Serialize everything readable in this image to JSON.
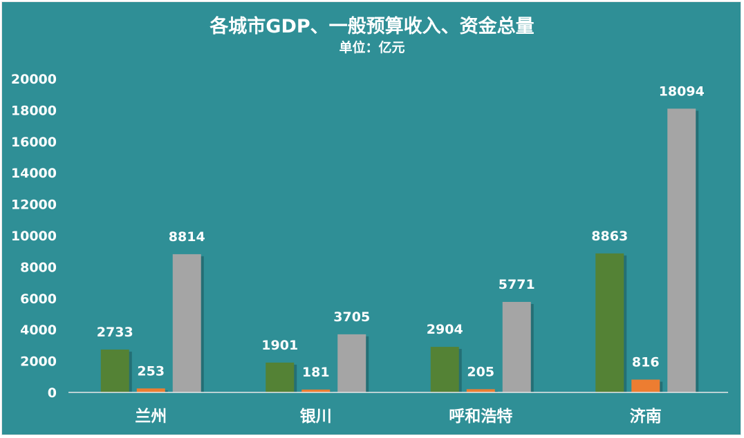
{
  "chart_data": {
    "type": "bar",
    "title": "各城市GDP、一般预算收入、资金总量",
    "subtitle": "单位：亿元",
    "categories": [
      "兰州",
      "银川",
      "呼和浩特",
      "济南"
    ],
    "series": [
      {
        "values": [
          2733,
          1901,
          2904,
          8863
        ],
        "color": "#548235"
      },
      {
        "values": [
          253,
          181,
          205,
          816
        ],
        "color": "#ed7d31"
      },
      {
        "values": [
          8814,
          3705,
          5771,
          18094
        ],
        "color": "#a5a5a5"
      }
    ],
    "ylim": [
      0,
      20000
    ],
    "yticks": [
      0,
      2000,
      4000,
      6000,
      8000,
      10000,
      12000,
      14000,
      16000,
      18000,
      20000
    ],
    "grid": false,
    "legend": "none",
    "background": "#2f8f96"
  }
}
